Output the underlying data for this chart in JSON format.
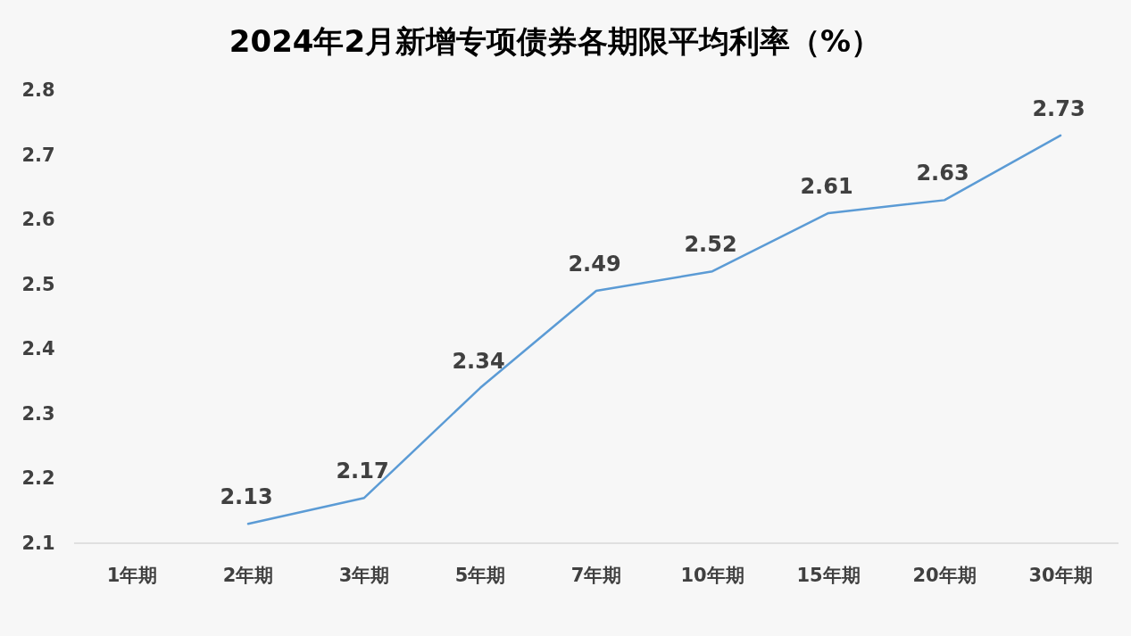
{
  "chart_data": {
    "type": "line",
    "title": "2024年2月新增专项债券各期限平均利率（%）",
    "categories": [
      "1年期",
      "2年期",
      "3年期",
      "5年期",
      "7年期",
      "10年期",
      "15年期",
      "20年期",
      "30年期"
    ],
    "series": [
      {
        "color": "#5b9bd5",
        "values": [
          null,
          2.13,
          2.17,
          2.34,
          2.49,
          2.52,
          2.61,
          2.63,
          2.73
        ]
      }
    ],
    "ylim": [
      2.1,
      2.8
    ],
    "yticks": [
      2.1,
      2.2,
      2.3,
      2.4,
      2.5,
      2.6,
      2.7,
      2.8
    ],
    "data_labels": true,
    "grid": false,
    "marker": "none",
    "line_style": "solid"
  }
}
